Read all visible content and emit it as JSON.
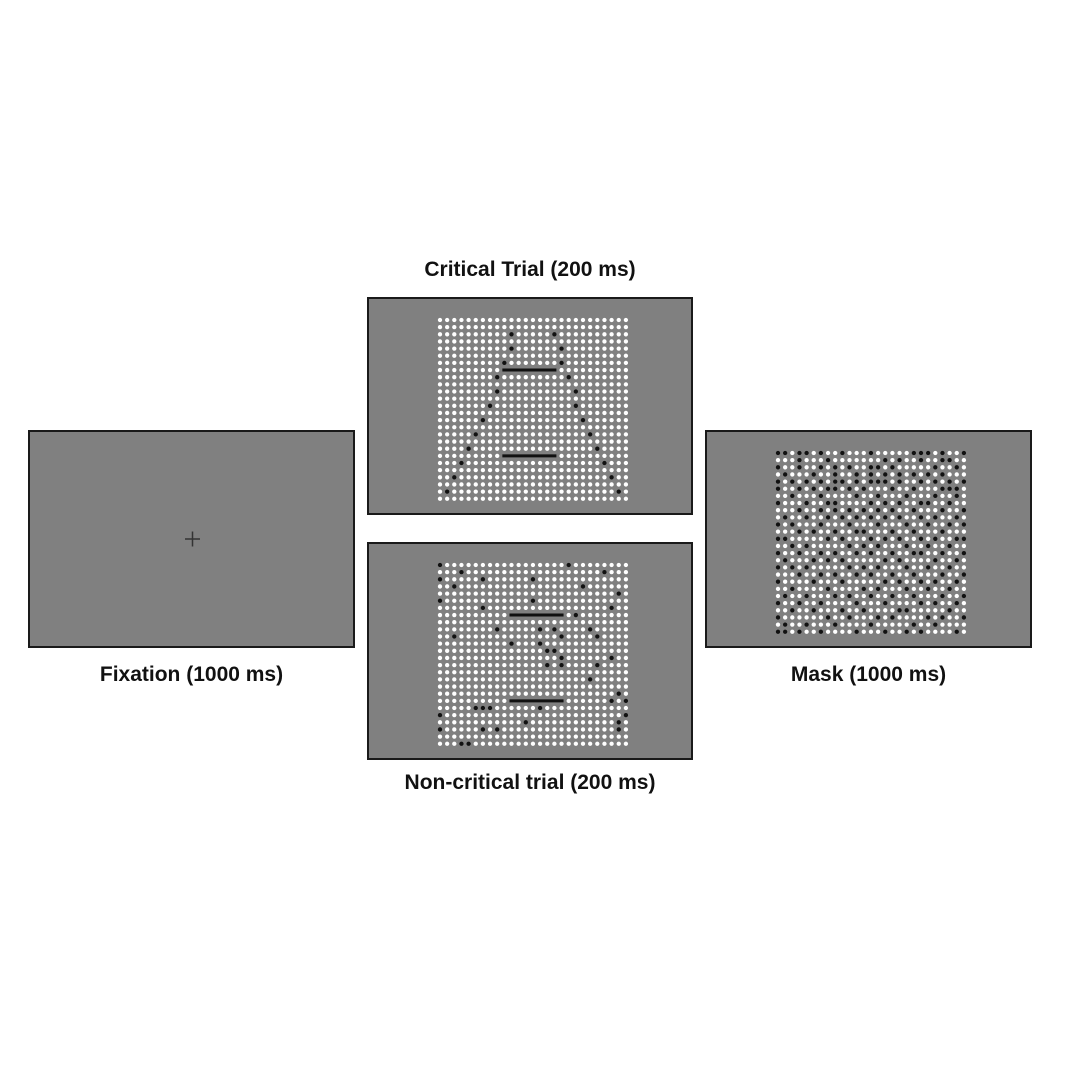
{
  "colors": {
    "background": "#ffffff",
    "screen": "#808080",
    "border": "#1a1a1a",
    "dot_white": "#ffffff",
    "dot_black": "#111111",
    "caption": "#111111"
  },
  "fixation": {
    "caption": "Fixation (1000 ms)",
    "symbol": "+"
  },
  "critical": {
    "caption": "Critical Trial (200 ms)",
    "grid_cols": 27,
    "grid_rows": 26,
    "black_dots": [
      [
        10,
        2
      ],
      [
        16,
        2
      ],
      [
        10,
        4
      ],
      [
        17,
        4
      ],
      [
        9,
        6
      ],
      [
        17,
        6
      ],
      [
        8,
        8
      ],
      [
        18,
        8
      ],
      [
        8,
        10
      ],
      [
        19,
        10
      ],
      [
        7,
        12
      ],
      [
        19,
        12
      ],
      [
        6,
        14
      ],
      [
        20,
        14
      ],
      [
        5,
        16
      ],
      [
        21,
        16
      ],
      [
        4,
        18
      ],
      [
        22,
        18
      ],
      [
        3,
        20
      ],
      [
        23,
        20
      ],
      [
        2,
        22
      ],
      [
        24,
        22
      ],
      [
        1,
        24
      ],
      [
        25,
        24
      ]
    ],
    "bars": [
      [
        9,
        16,
        7
      ],
      [
        9,
        16,
        19
      ]
    ]
  },
  "noncritical": {
    "caption": "Non-critical trial (200 ms)",
    "grid_cols": 27,
    "grid_rows": 26,
    "black_dots": [
      [
        0,
        0
      ],
      [
        18,
        0
      ],
      [
        3,
        1
      ],
      [
        23,
        1
      ],
      [
        0,
        2
      ],
      [
        6,
        2
      ],
      [
        13,
        2
      ],
      [
        2,
        3
      ],
      [
        20,
        3
      ],
      [
        25,
        4
      ],
      [
        0,
        5
      ],
      [
        13,
        5
      ],
      [
        6,
        6
      ],
      [
        24,
        6
      ],
      [
        10,
        7
      ],
      [
        15,
        7
      ],
      [
        19,
        7
      ],
      [
        8,
        9
      ],
      [
        14,
        9
      ],
      [
        16,
        9
      ],
      [
        21,
        9
      ],
      [
        2,
        10
      ],
      [
        17,
        10
      ],
      [
        22,
        10
      ],
      [
        10,
        11
      ],
      [
        14,
        11
      ],
      [
        15,
        12
      ],
      [
        16,
        12
      ],
      [
        17,
        13
      ],
      [
        24,
        13
      ],
      [
        15,
        14
      ],
      [
        17,
        14
      ],
      [
        22,
        14
      ],
      [
        21,
        16
      ],
      [
        25,
        18
      ],
      [
        24,
        19
      ],
      [
        26,
        19
      ],
      [
        5,
        20
      ],
      [
        6,
        20
      ],
      [
        7,
        20
      ],
      [
        14,
        20
      ],
      [
        0,
        21
      ],
      [
        26,
        21
      ],
      [
        12,
        22
      ],
      [
        25,
        22
      ],
      [
        0,
        23
      ],
      [
        6,
        23
      ],
      [
        8,
        23
      ],
      [
        25,
        23
      ],
      [
        3,
        25
      ],
      [
        4,
        25
      ]
    ],
    "bars": [
      [
        10,
        17,
        7
      ],
      [
        10,
        17,
        19
      ]
    ]
  },
  "mask": {
    "caption": "Mask (1000 ms)",
    "grid_cols": 27,
    "grid_rows": 26,
    "black_dots": [
      [
        0,
        0
      ],
      [
        1,
        0
      ],
      [
        3,
        0
      ],
      [
        4,
        0
      ],
      [
        6,
        0
      ],
      [
        9,
        0
      ],
      [
        13,
        0
      ],
      [
        19,
        0
      ],
      [
        20,
        0
      ],
      [
        21,
        0
      ],
      [
        23,
        0
      ],
      [
        26,
        0
      ],
      [
        3,
        1
      ],
      [
        7,
        1
      ],
      [
        15,
        1
      ],
      [
        17,
        1
      ],
      [
        20,
        1
      ],
      [
        23,
        1
      ],
      [
        24,
        1
      ],
      [
        0,
        2
      ],
      [
        3,
        2
      ],
      [
        6,
        2
      ],
      [
        8,
        2
      ],
      [
        10,
        2
      ],
      [
        13,
        2
      ],
      [
        14,
        2
      ],
      [
        16,
        2
      ],
      [
        22,
        2
      ],
      [
        25,
        2
      ],
      [
        1,
        3
      ],
      [
        5,
        3
      ],
      [
        8,
        3
      ],
      [
        11,
        3
      ],
      [
        13,
        3
      ],
      [
        15,
        3
      ],
      [
        17,
        3
      ],
      [
        19,
        3
      ],
      [
        21,
        3
      ],
      [
        23,
        3
      ],
      [
        0,
        4
      ],
      [
        2,
        4
      ],
      [
        4,
        4
      ],
      [
        6,
        4
      ],
      [
        8,
        4
      ],
      [
        9,
        4
      ],
      [
        11,
        4
      ],
      [
        13,
        4
      ],
      [
        14,
        4
      ],
      [
        15,
        4
      ],
      [
        17,
        4
      ],
      [
        20,
        4
      ],
      [
        22,
        4
      ],
      [
        24,
        4
      ],
      [
        26,
        4
      ],
      [
        0,
        5
      ],
      [
        3,
        5
      ],
      [
        5,
        5
      ],
      [
        7,
        5
      ],
      [
        8,
        5
      ],
      [
        10,
        5
      ],
      [
        12,
        5
      ],
      [
        16,
        5
      ],
      [
        19,
        5
      ],
      [
        23,
        5
      ],
      [
        24,
        5
      ],
      [
        25,
        5
      ],
      [
        2,
        6
      ],
      [
        6,
        6
      ],
      [
        11,
        6
      ],
      [
        14,
        6
      ],
      [
        18,
        6
      ],
      [
        22,
        6
      ],
      [
        25,
        6
      ],
      [
        0,
        7
      ],
      [
        4,
        7
      ],
      [
        7,
        7
      ],
      [
        8,
        7
      ],
      [
        13,
        7
      ],
      [
        15,
        7
      ],
      [
        17,
        7
      ],
      [
        20,
        7
      ],
      [
        21,
        7
      ],
      [
        24,
        7
      ],
      [
        3,
        8
      ],
      [
        6,
        8
      ],
      [
        8,
        8
      ],
      [
        10,
        8
      ],
      [
        12,
        8
      ],
      [
        14,
        8
      ],
      [
        16,
        8
      ],
      [
        19,
        8
      ],
      [
        23,
        8
      ],
      [
        26,
        8
      ],
      [
        1,
        9
      ],
      [
        4,
        9
      ],
      [
        7,
        9
      ],
      [
        9,
        9
      ],
      [
        11,
        9
      ],
      [
        13,
        9
      ],
      [
        15,
        9
      ],
      [
        17,
        9
      ],
      [
        20,
        9
      ],
      [
        22,
        9
      ],
      [
        25,
        9
      ],
      [
        0,
        10
      ],
      [
        2,
        10
      ],
      [
        6,
        10
      ],
      [
        10,
        10
      ],
      [
        14,
        10
      ],
      [
        18,
        10
      ],
      [
        21,
        10
      ],
      [
        24,
        10
      ],
      [
        26,
        10
      ],
      [
        3,
        11
      ],
      [
        5,
        11
      ],
      [
        8,
        11
      ],
      [
        11,
        11
      ],
      [
        12,
        11
      ],
      [
        16,
        11
      ],
      [
        19,
        11
      ],
      [
        23,
        11
      ],
      [
        0,
        12
      ],
      [
        1,
        12
      ],
      [
        7,
        12
      ],
      [
        9,
        12
      ],
      [
        13,
        12
      ],
      [
        15,
        12
      ],
      [
        17,
        12
      ],
      [
        20,
        12
      ],
      [
        22,
        12
      ],
      [
        25,
        12
      ],
      [
        26,
        12
      ],
      [
        2,
        13
      ],
      [
        4,
        13
      ],
      [
        10,
        13
      ],
      [
        12,
        13
      ],
      [
        14,
        13
      ],
      [
        18,
        13
      ],
      [
        21,
        13
      ],
      [
        24,
        13
      ],
      [
        0,
        14
      ],
      [
        3,
        14
      ],
      [
        6,
        14
      ],
      [
        8,
        14
      ],
      [
        11,
        14
      ],
      [
        13,
        14
      ],
      [
        16,
        14
      ],
      [
        19,
        14
      ],
      [
        20,
        14
      ],
      [
        23,
        14
      ],
      [
        26,
        14
      ],
      [
        1,
        15
      ],
      [
        5,
        15
      ],
      [
        7,
        15
      ],
      [
        9,
        15
      ],
      [
        15,
        15
      ],
      [
        17,
        15
      ],
      [
        22,
        15
      ],
      [
        25,
        15
      ],
      [
        0,
        16
      ],
      [
        2,
        16
      ],
      [
        4,
        16
      ],
      [
        10,
        16
      ],
      [
        12,
        16
      ],
      [
        14,
        16
      ],
      [
        18,
        16
      ],
      [
        21,
        16
      ],
      [
        24,
        16
      ],
      [
        3,
        17
      ],
      [
        6,
        17
      ],
      [
        8,
        17
      ],
      [
        11,
        17
      ],
      [
        13,
        17
      ],
      [
        16,
        17
      ],
      [
        19,
        17
      ],
      [
        23,
        17
      ],
      [
        26,
        17
      ],
      [
        0,
        18
      ],
      [
        5,
        18
      ],
      [
        9,
        18
      ],
      [
        15,
        18
      ],
      [
        17,
        18
      ],
      [
        20,
        18
      ],
      [
        22,
        18
      ],
      [
        25,
        18
      ],
      [
        2,
        19
      ],
      [
        7,
        19
      ],
      [
        12,
        19
      ],
      [
        14,
        19
      ],
      [
        18,
        19
      ],
      [
        21,
        19
      ],
      [
        24,
        19
      ],
      [
        1,
        20
      ],
      [
        4,
        20
      ],
      [
        8,
        20
      ],
      [
        10,
        20
      ],
      [
        13,
        20
      ],
      [
        16,
        20
      ],
      [
        19,
        20
      ],
      [
        23,
        20
      ],
      [
        26,
        20
      ],
      [
        0,
        21
      ],
      [
        3,
        21
      ],
      [
        6,
        21
      ],
      [
        11,
        21
      ],
      [
        15,
        21
      ],
      [
        20,
        21
      ],
      [
        22,
        21
      ],
      [
        25,
        21
      ],
      [
        2,
        22
      ],
      [
        5,
        22
      ],
      [
        9,
        22
      ],
      [
        12,
        22
      ],
      [
        17,
        22
      ],
      [
        18,
        22
      ],
      [
        24,
        22
      ],
      [
        0,
        23
      ],
      [
        7,
        23
      ],
      [
        10,
        23
      ],
      [
        14,
        23
      ],
      [
        16,
        23
      ],
      [
        21,
        23
      ],
      [
        23,
        23
      ],
      [
        26,
        23
      ],
      [
        1,
        24
      ],
      [
        4,
        24
      ],
      [
        8,
        24
      ],
      [
        13,
        24
      ],
      [
        19,
        24
      ],
      [
        22,
        24
      ],
      [
        0,
        25
      ],
      [
        1,
        25
      ],
      [
        3,
        25
      ],
      [
        6,
        25
      ],
      [
        11,
        25
      ],
      [
        15,
        25
      ],
      [
        18,
        25
      ],
      [
        20,
        25
      ],
      [
        25,
        25
      ]
    ],
    "bars": []
  }
}
